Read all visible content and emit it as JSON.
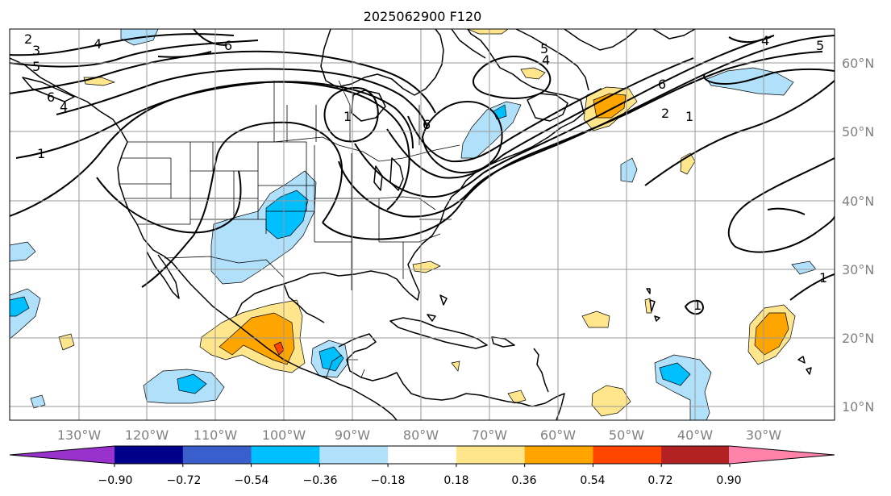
{
  "title": "2025062900 F120",
  "lat_labels": [
    "60°N",
    "50°N",
    "40°N",
    "30°N",
    "20°N",
    "10°N"
  ],
  "lon_labels": [
    "130°W",
    "120°W",
    "110°W",
    "100°W",
    "90°W",
    "80°W",
    "70°W",
    "60°W",
    "50°W",
    "40°W",
    "30°W"
  ],
  "colorbar": {
    "ticks": [
      "−0.90",
      "−0.72",
      "−0.54",
      "−0.36",
      "−0.18",
      "0.18",
      "0.36",
      "0.54",
      "0.72",
      "0.90"
    ],
    "colors": [
      "#9932cc",
      "#00008b",
      "#3a5fcd",
      "#00bfff",
      "#b0e0fa",
      "#ffffff",
      "#ffe68c",
      "#ffa500",
      "#ff4500",
      "#b22222",
      "#ff82ab"
    ]
  },
  "contour_labels": [
    "2",
    "3",
    "4",
    "5",
    "6",
    "6",
    "4",
    "1",
    "1",
    "5",
    "4",
    "6",
    "2",
    "1",
    "4",
    "5",
    "6",
    "1",
    "1"
  ]
}
